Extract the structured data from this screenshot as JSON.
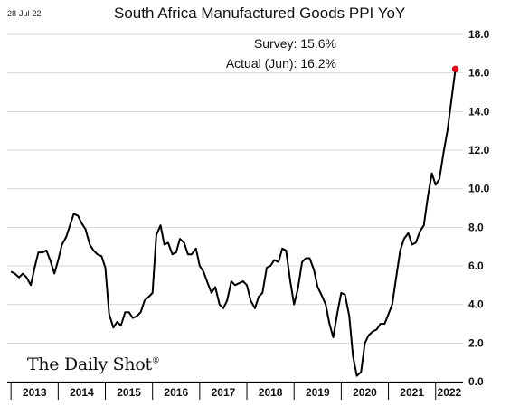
{
  "date_stamp": "28-Jul-22",
  "logo_text": "The Daily Shot",
  "logo_mark": "®",
  "annotations": {
    "survey": "Survey:  15.6%",
    "actual": "Actual (Jun):  16.2%"
  },
  "colors": {
    "line": "#000000",
    "last_point": "#e8001c",
    "grid": "#d9d9d9"
  },
  "chart_data": {
    "type": "line",
    "title": "South Africa Manufactured Goods PPI YoY",
    "xlabel": "",
    "ylabel": "",
    "ylim": [
      0,
      18
    ],
    "y_ticks": [
      "0.0",
      "2.0",
      "4.0",
      "6.0",
      "8.0",
      "10.0",
      "12.0",
      "14.0",
      "16.0",
      "18.0"
    ],
    "x_ticks": [
      "2013",
      "2014",
      "2015",
      "2016",
      "2017",
      "2018",
      "2019",
      "2020",
      "2021",
      "2022"
    ],
    "x_range": [
      2012.92,
      2022.58
    ],
    "grid": true,
    "series": [
      {
        "x": [
          2013.0,
          2013.08,
          2013.17,
          2013.25,
          2013.33,
          2013.42,
          2013.5,
          2013.58,
          2013.67,
          2013.75,
          2013.83,
          2013.92,
          2014.0,
          2014.08,
          2014.17,
          2014.25,
          2014.33,
          2014.42,
          2014.5,
          2014.58,
          2014.67,
          2014.75,
          2014.83,
          2014.92,
          2015.0,
          2015.08,
          2015.17,
          2015.25,
          2015.33,
          2015.42,
          2015.5,
          2015.58,
          2015.67,
          2015.75,
          2015.83,
          2015.92,
          2016.0,
          2016.08,
          2016.17,
          2016.25,
          2016.33,
          2016.42,
          2016.5,
          2016.58,
          2016.67,
          2016.75,
          2016.83,
          2016.92,
          2017.0,
          2017.08,
          2017.17,
          2017.25,
          2017.33,
          2017.42,
          2017.5,
          2017.58,
          2017.67,
          2017.75,
          2017.83,
          2017.92,
          2018.0,
          2018.08,
          2018.17,
          2018.25,
          2018.33,
          2018.42,
          2018.5,
          2018.58,
          2018.67,
          2018.75,
          2018.83,
          2018.92,
          2019.0,
          2019.08,
          2019.17,
          2019.25,
          2019.33,
          2019.42,
          2019.5,
          2019.58,
          2019.67,
          2019.75,
          2019.83,
          2019.92,
          2020.0,
          2020.08,
          2020.17,
          2020.25,
          2020.33,
          2020.42,
          2020.5,
          2020.58,
          2020.67,
          2020.75,
          2020.83,
          2020.92,
          2021.0,
          2021.08,
          2021.17,
          2021.25,
          2021.33,
          2021.42,
          2021.5,
          2021.58,
          2021.67,
          2021.75,
          2021.83,
          2021.92,
          2022.0,
          2022.08,
          2022.17,
          2022.25,
          2022.33,
          2022.42
        ],
        "values": [
          5.7,
          5.6,
          5.4,
          5.6,
          5.4,
          5.0,
          5.9,
          6.7,
          6.7,
          6.8,
          6.3,
          5.6,
          6.3,
          7.1,
          7.5,
          8.1,
          8.7,
          8.6,
          8.2,
          7.9,
          7.1,
          6.8,
          6.6,
          6.5,
          5.9,
          3.5,
          2.8,
          3.1,
          2.9,
          3.6,
          3.6,
          3.3,
          3.4,
          3.6,
          4.2,
          4.4,
          4.6,
          7.6,
          8.1,
          7.1,
          7.2,
          6.6,
          6.7,
          7.4,
          7.2,
          6.6,
          6.6,
          6.9,
          6.0,
          5.7,
          5.1,
          4.6,
          4.9,
          4.0,
          3.8,
          4.2,
          5.2,
          5.0,
          5.1,
          5.2,
          5.0,
          4.2,
          3.8,
          4.4,
          4.6,
          5.9,
          6.0,
          6.3,
          6.2,
          6.9,
          6.8,
          5.2,
          4.0,
          4.8,
          6.2,
          6.4,
          6.4,
          5.8,
          4.9,
          4.5,
          4.0,
          3.0,
          2.3,
          3.6,
          4.6,
          4.5,
          3.4,
          1.3,
          0.3,
          0.5,
          2.0,
          2.4,
          2.6,
          2.7,
          3.0,
          3.0,
          3.5,
          4.0,
          5.5,
          6.8,
          7.4,
          7.7,
          7.1,
          7.2,
          7.8,
          8.1,
          9.5,
          10.8,
          10.2,
          10.5,
          11.9,
          13.0,
          14.5,
          16.2
        ]
      }
    ],
    "highlight_last_point": true
  }
}
